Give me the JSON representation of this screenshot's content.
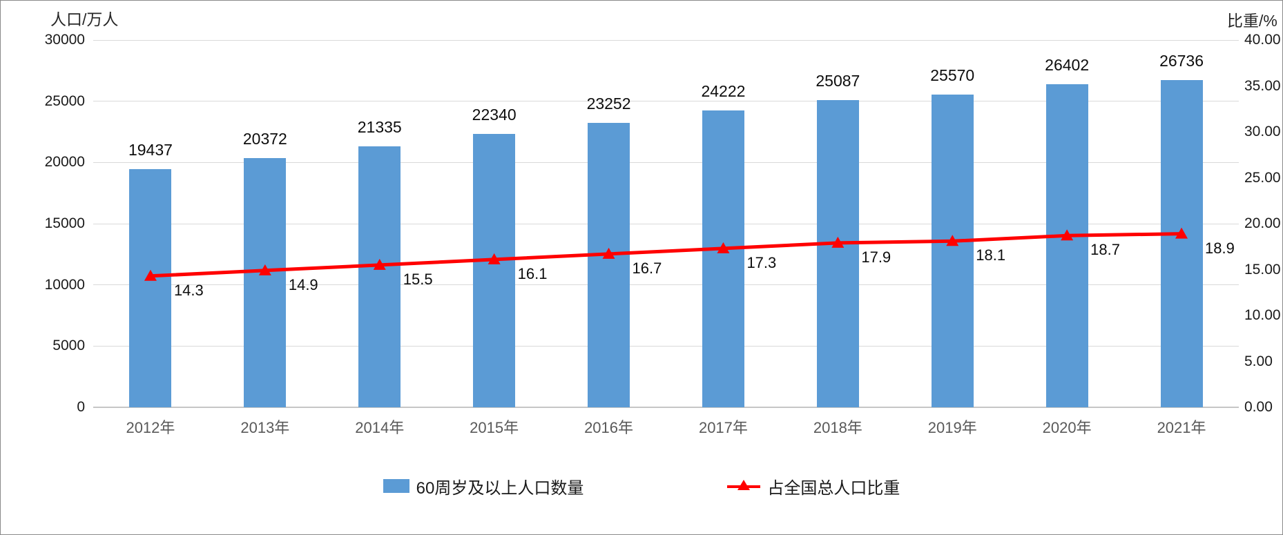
{
  "chart_data": {
    "type": "bar",
    "subtype": "bar-and-line-dual-axis",
    "categories": [
      "2012年",
      "2013年",
      "2014年",
      "2015年",
      "2016年",
      "2017年",
      "2018年",
      "2019年",
      "2020年",
      "2021年"
    ],
    "series": [
      {
        "name": "60周岁及以上人口数量",
        "type": "bar",
        "axis": "left",
        "color": "#5b9bd5",
        "values": [
          19437,
          20372,
          21335,
          22340,
          23252,
          24222,
          25087,
          25570,
          26402,
          26736
        ],
        "data_labels": [
          "19437",
          "20372",
          "21335",
          "22340",
          "23252",
          "24222",
          "25087",
          "25570",
          "26402",
          "26736"
        ]
      },
      {
        "name": "占全国总人口比重",
        "type": "line",
        "axis": "right",
        "color": "#ff0000",
        "marker": "triangle",
        "values": [
          14.3,
          14.9,
          15.5,
          16.1,
          16.7,
          17.3,
          17.9,
          18.1,
          18.7,
          18.9
        ],
        "data_labels": [
          "14.3",
          "14.9",
          "15.5",
          "16.1",
          "16.7",
          "17.3",
          "17.9",
          "18.1",
          "18.7",
          "18.9"
        ]
      }
    ],
    "title": "",
    "left_axis": {
      "title": "人口/万人",
      "min": 0,
      "max": 30000,
      "tick_step": 5000,
      "ticks": [
        "0",
        "5000",
        "10000",
        "15000",
        "20000",
        "25000",
        "30000"
      ]
    },
    "right_axis": {
      "title": "比重/%",
      "min": 0,
      "max": 40,
      "tick_step": 5,
      "ticks": [
        "0.00",
        "5.00",
        "10.00",
        "15.00",
        "20.00",
        "25.00",
        "30.00",
        "35.00",
        "40.00"
      ]
    },
    "grid": "horizontal gridlines aligned to left axis",
    "legend_position": "bottom-center",
    "colors": {
      "bar": "#5b9bd5",
      "line": "#ff0000",
      "gridline": "#d9d9d9",
      "x_tick_text": "#595959",
      "tick_text": "#1a1a1a",
      "data_label_text": "#0d0d0d"
    }
  }
}
